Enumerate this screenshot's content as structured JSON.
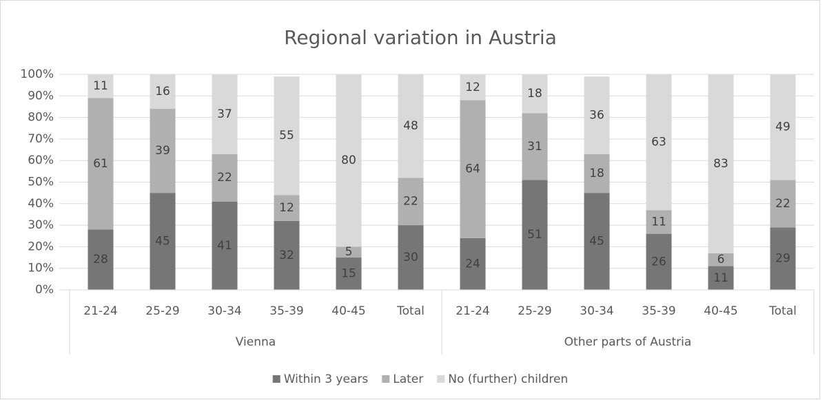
{
  "chart_data": {
    "type": "stacked_bar",
    "title": "Regional variation in Austria",
    "categories": [
      "21-24",
      "25-29",
      "30-34",
      "35-39",
      "40-45",
      "Total",
      "21-24",
      "25-29",
      "30-34",
      "35-39",
      "40-45",
      "Total"
    ],
    "groups": [
      "Vienna",
      "Other parts of Austria"
    ],
    "series": [
      {
        "name": "Within 3 years",
        "color": "#767676",
        "values": [
          28,
          45,
          41,
          32,
          15,
          30,
          24,
          51,
          45,
          26,
          11,
          29
        ]
      },
      {
        "name": "Later",
        "color": "#b0b0b0",
        "values": [
          61,
          39,
          22,
          12,
          5,
          22,
          64,
          31,
          18,
          11,
          6,
          22
        ]
      },
      {
        "name": "No (further) children",
        "color": "#d9d9d9",
        "values": [
          11,
          16,
          37,
          55,
          80,
          48,
          12,
          18,
          36,
          63,
          83,
          49
        ]
      }
    ],
    "ylim": [
      0,
      100
    ],
    "yticks": [
      {
        "value": 0,
        "label": "0%"
      },
      {
        "value": 10,
        "label": "10%"
      },
      {
        "value": 20,
        "label": "20%"
      },
      {
        "value": 30,
        "label": "30%"
      },
      {
        "value": 40,
        "label": "40%"
      },
      {
        "value": 50,
        "label": "50%"
      },
      {
        "value": 60,
        "label": "60%"
      },
      {
        "value": 70,
        "label": "70%"
      },
      {
        "value": 80,
        "label": "80%"
      },
      {
        "value": 90,
        "label": "90%"
      },
      {
        "value": 100,
        "label": "100%"
      }
    ],
    "grid": true,
    "legend": "bottom"
  }
}
